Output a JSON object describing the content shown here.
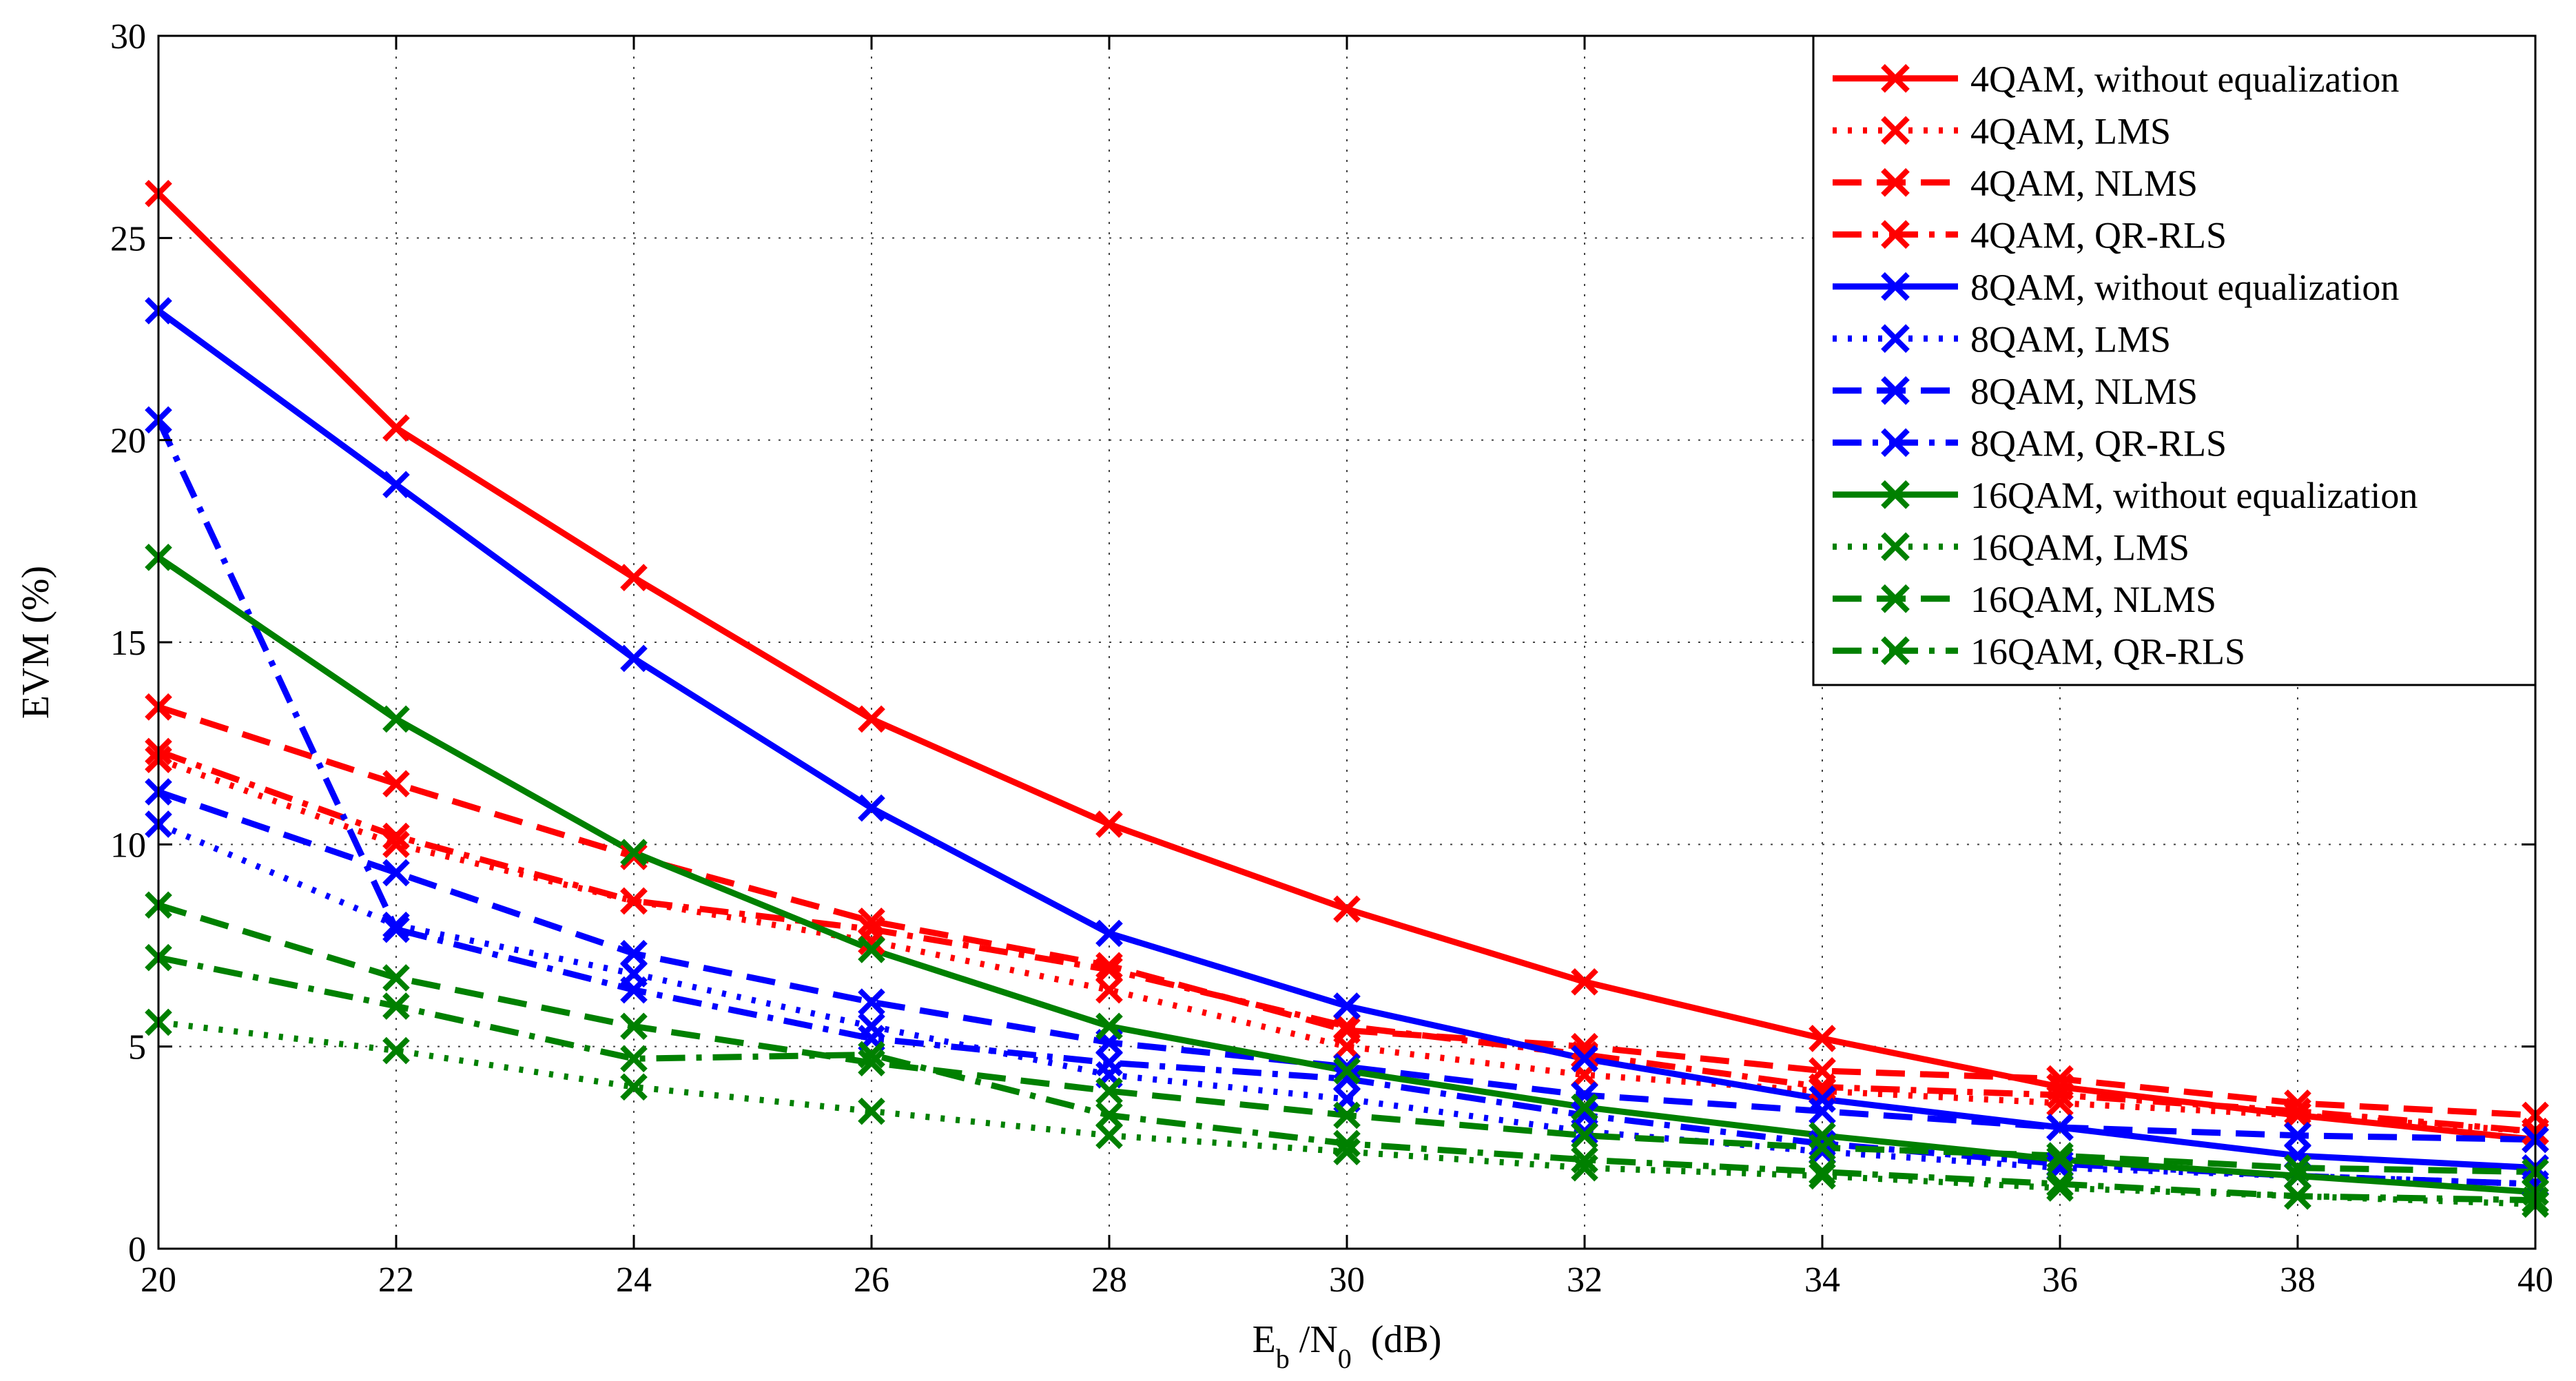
{
  "chart_data": {
    "type": "line",
    "title": "",
    "xlabel": {
      "main": "E",
      "sub_b": "b",
      "mid": " /N",
      "sub_0": "0",
      "unit": "  (dB)"
    },
    "ylabel": "EVM (%)",
    "xlim": [
      20,
      40
    ],
    "ylim": [
      0,
      30
    ],
    "grid": true,
    "legend_position": "top-right",
    "x": [
      20,
      22,
      24,
      26,
      28,
      30,
      32,
      34,
      36,
      38,
      40
    ],
    "x_ticks": [
      "20",
      "22",
      "24",
      "26",
      "28",
      "30",
      "32",
      "34",
      "36",
      "38",
      "40"
    ],
    "y_ticks": [
      "0",
      "5",
      "10",
      "15",
      "20",
      "25",
      "30"
    ],
    "series": [
      {
        "name": "4QAM, without equalization",
        "color": "#ff0000",
        "style": "solid",
        "values": [
          26.1,
          20.3,
          16.6,
          13.1,
          10.5,
          8.4,
          6.6,
          5.2,
          4.0,
          3.3,
          2.7
        ]
      },
      {
        "name": "4QAM, LMS",
        "color": "#ff0000",
        "style": "dotted",
        "values": [
          12.1,
          10.0,
          8.6,
          7.6,
          6.4,
          5.0,
          4.3,
          3.9,
          3.6,
          3.3,
          2.9
        ]
      },
      {
        "name": "4QAM, NLMS",
        "color": "#ff0000",
        "style": "dashed",
        "values": [
          13.4,
          11.5,
          9.7,
          8.1,
          7.0,
          5.4,
          5.0,
          4.4,
          4.2,
          3.6,
          3.3
        ]
      },
      {
        "name": "4QAM, QR-RLS",
        "color": "#ff0000",
        "style": "dashdot",
        "values": [
          12.3,
          10.2,
          8.6,
          7.9,
          6.9,
          5.5,
          4.8,
          4.0,
          3.8,
          3.4,
          2.9
        ]
      },
      {
        "name": "8QAM, without equalization",
        "color": "#0000ff",
        "style": "solid",
        "values": [
          23.2,
          18.9,
          14.6,
          10.9,
          7.8,
          6.0,
          4.7,
          3.7,
          3.0,
          2.3,
          2.0
        ]
      },
      {
        "name": "8QAM, LMS",
        "color": "#0000ff",
        "style": "dotted",
        "values": [
          10.5,
          8.0,
          6.8,
          5.5,
          4.3,
          3.7,
          2.9,
          2.4,
          2.0,
          1.8,
          1.6
        ]
      },
      {
        "name": "8QAM, NLMS",
        "color": "#0000ff",
        "style": "dashed",
        "values": [
          11.3,
          9.3,
          7.3,
          6.1,
          5.1,
          4.5,
          3.8,
          3.4,
          3.0,
          2.8,
          2.7
        ]
      },
      {
        "name": "8QAM, QR-RLS",
        "color": "#0000ff",
        "style": "dashdot",
        "values": [
          20.5,
          7.9,
          6.4,
          5.2,
          4.6,
          4.2,
          3.3,
          2.6,
          2.1,
          1.8,
          1.6
        ]
      },
      {
        "name": "16QAM, without equalization",
        "color": "#008000",
        "style": "solid",
        "values": [
          17.1,
          13.1,
          9.8,
          7.4,
          5.5,
          4.4,
          3.5,
          2.8,
          2.2,
          1.8,
          1.4
        ]
      },
      {
        "name": "16QAM, LMS",
        "color": "#008000",
        "style": "dotted",
        "values": [
          5.6,
          4.9,
          4.0,
          3.4,
          2.8,
          2.4,
          2.0,
          1.8,
          1.5,
          1.3,
          1.1
        ]
      },
      {
        "name": "16QAM, NLMS",
        "color": "#008000",
        "style": "dashed",
        "values": [
          8.5,
          6.7,
          5.5,
          4.6,
          3.9,
          3.3,
          2.8,
          2.5,
          2.3,
          2.0,
          1.9
        ]
      },
      {
        "name": "16QAM, QR-RLS",
        "color": "#008000",
        "style": "dashdot",
        "values": [
          7.2,
          6.0,
          4.7,
          4.8,
          3.3,
          2.6,
          2.2,
          1.9,
          1.6,
          1.3,
          1.2
        ]
      }
    ]
  }
}
